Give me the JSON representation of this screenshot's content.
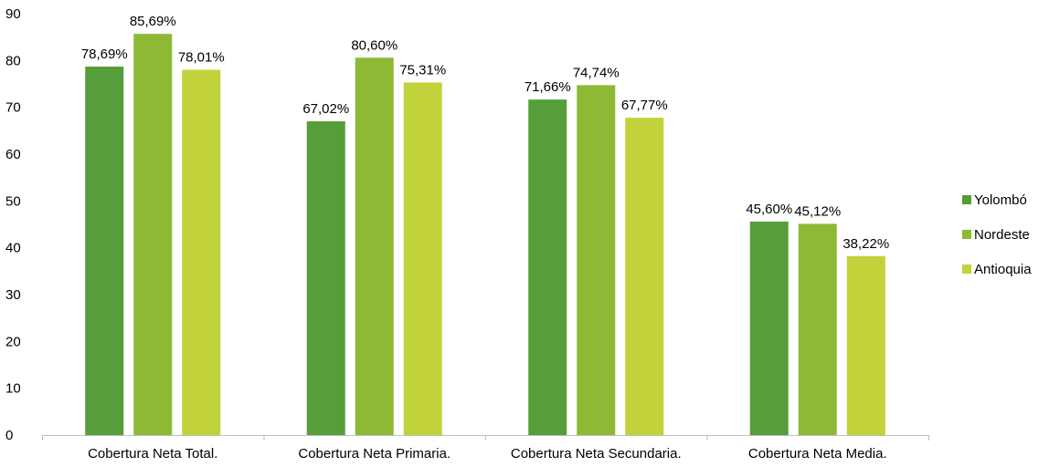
{
  "chart_data": {
    "type": "bar",
    "title": "",
    "xlabel": "",
    "ylabel": "",
    "ylim": [
      0,
      90
    ],
    "yticks": [
      "0",
      "10",
      "20",
      "30",
      "40",
      "50",
      "60",
      "70",
      "80",
      "90"
    ],
    "grid": false,
    "legend_position": "right",
    "categories": [
      "Cobertura Neta Total.",
      "Cobertura Neta Primaria.",
      "Cobertura Neta Secundaria.",
      "Cobertura Neta Media."
    ],
    "series": [
      {
        "name": "Yolombó",
        "color": "#559e39",
        "values": [
          78.69,
          67.02,
          71.66,
          45.6
        ],
        "labels": [
          "78,69%",
          "67,02%",
          "71,66%",
          "45,60%"
        ]
      },
      {
        "name": "Nordeste",
        "color": "#8db935",
        "values": [
          85.69,
          80.6,
          74.74,
          45.12
        ],
        "labels": [
          "85,69%",
          "80,60%",
          "74,74%",
          "45,12%"
        ]
      },
      {
        "name": "Antioquia",
        "color": "#c2d23b",
        "values": [
          78.01,
          75.31,
          67.77,
          38.22
        ],
        "labels": [
          "78,01%",
          "75,31%",
          "67,77%",
          "38,22%"
        ]
      }
    ]
  }
}
